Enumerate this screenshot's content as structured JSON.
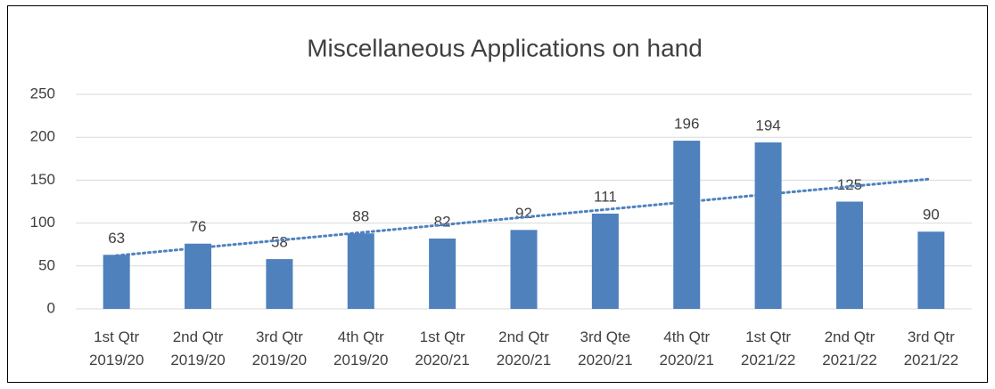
{
  "chart_data": {
    "type": "bar",
    "title": "Miscellaneous Applications on hand",
    "categories": [
      [
        "1st Qtr",
        "2019/20"
      ],
      [
        "2nd Qtr",
        "2019/20"
      ],
      [
        "3rd Qtr",
        "2019/20"
      ],
      [
        "4th Qtr",
        "2019/20"
      ],
      [
        "1st Qtr",
        "2020/21"
      ],
      [
        "2nd Qtr",
        "2020/21"
      ],
      [
        "3rd Qte",
        "2020/21"
      ],
      [
        "4th Qtr",
        "2020/21"
      ],
      [
        "1st Qtr",
        "2021/22"
      ],
      [
        "2nd Qtr",
        "2021/22"
      ],
      [
        "3rd Qtr",
        "2021/22"
      ]
    ],
    "values": [
      63,
      76,
      58,
      88,
      82,
      92,
      111,
      196,
      194,
      125,
      90
    ],
    "color": "#4f81bd",
    "ylim": [
      0,
      250
    ],
    "yticks": [
      0,
      50,
      100,
      150,
      200,
      250
    ],
    "grid": true,
    "trendline": "linear",
    "trendline_color": "#4f81bd"
  }
}
